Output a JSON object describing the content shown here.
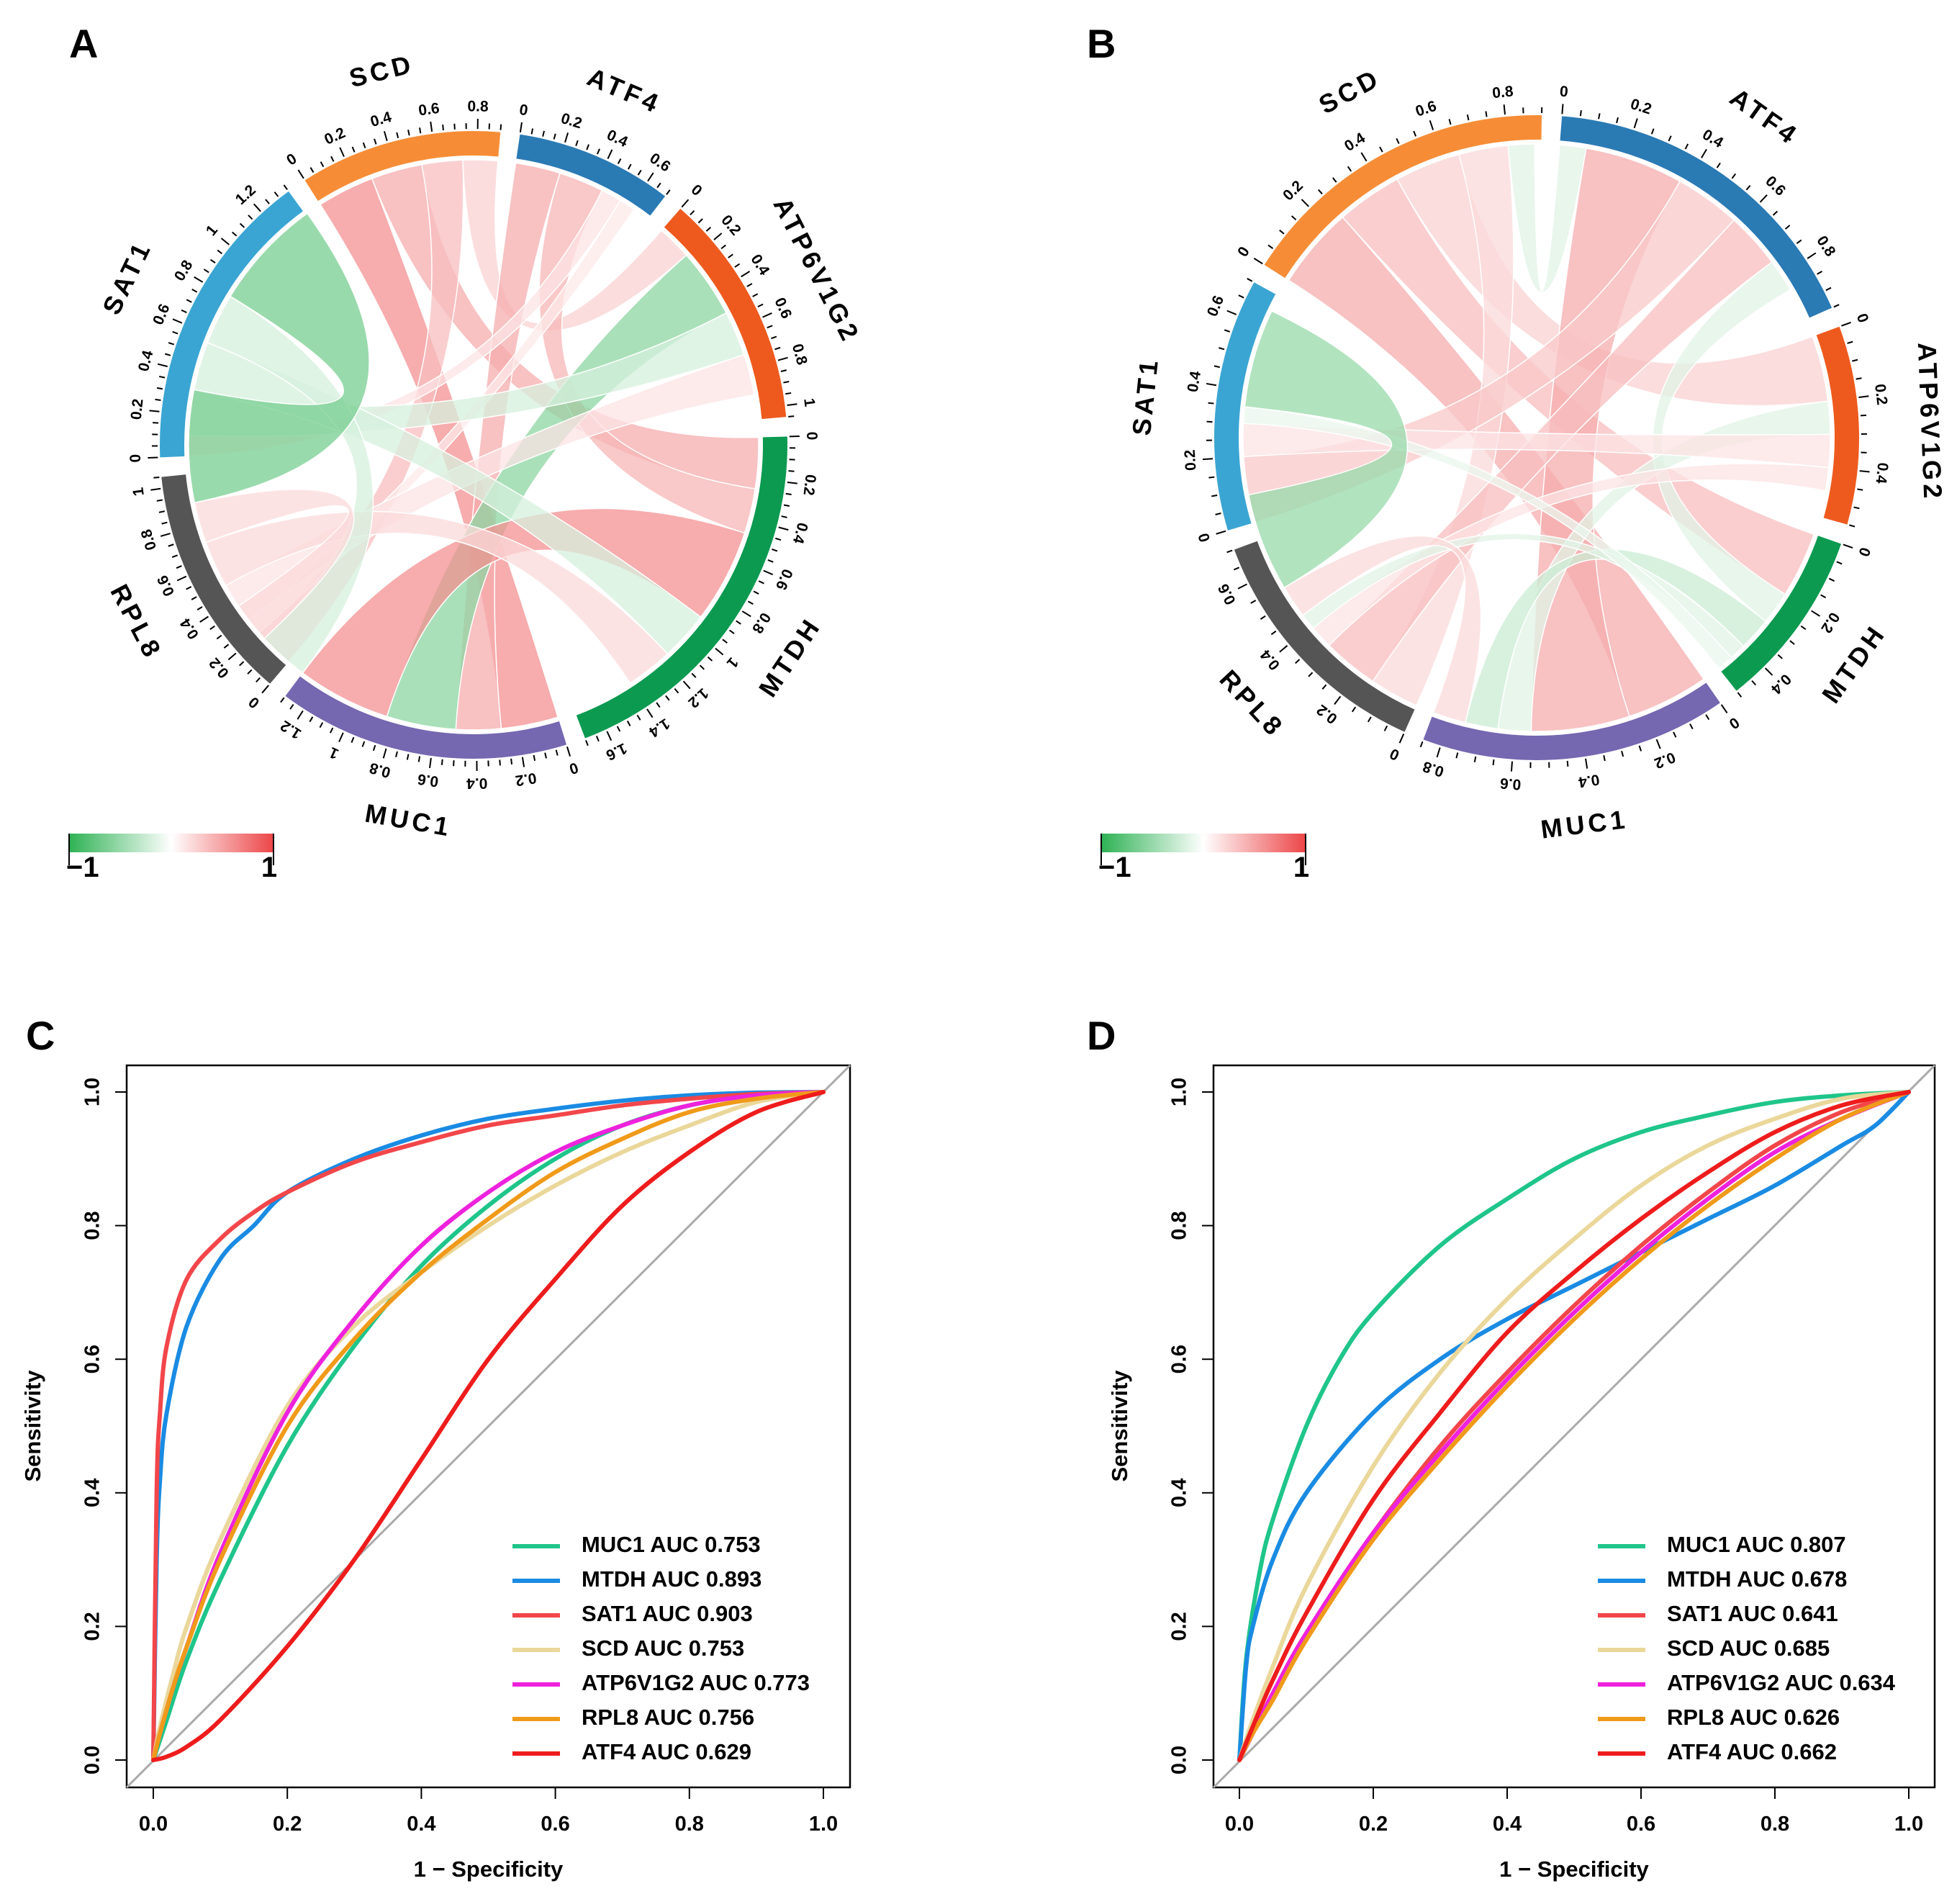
{
  "chart_data": [
    {
      "panel": "A",
      "type": "chord",
      "gap_degrees": 3.6,
      "segments": [
        {
          "name": "ATF4",
          "max": 0.7,
          "color": "#2a7ab4",
          "ticks": [
            "0",
            "0.2",
            "0.4",
            "0.6"
          ]
        },
        {
          "name": "ATP6V1G2",
          "max": 1.05,
          "color": "#ee5a1e",
          "ticks": [
            "0",
            "0.2",
            "0.4",
            "0.6",
            "0.8",
            "1"
          ]
        },
        {
          "name": "MTDH",
          "max": 1.7,
          "color": "#0b9a50",
          "ticks": [
            "0",
            "0.2",
            "0.4",
            "0.6",
            "0.8",
            "1",
            "1.2",
            "1.4",
            "1.6"
          ]
        },
        {
          "name": "MUC1",
          "max": 1.3,
          "color": "#7567b0",
          "ticks": [
            "0",
            "0.2",
            "0.4",
            "0.6",
            "0.8",
            "1",
            "1.2"
          ]
        },
        {
          "name": "RPL8",
          "max": 1.05,
          "color": "#555555",
          "ticks": [
            "0",
            "0.2",
            "0.4",
            "0.6",
            "0.8",
            "1"
          ]
        },
        {
          "name": "SAT1",
          "max": 1.35,
          "color": "#3aa5d3",
          "ticks": [
            "0",
            "0.2",
            "0.4",
            "0.6",
            "0.8",
            "1",
            "1.2"
          ]
        },
        {
          "name": "SCD",
          "max": 0.9,
          "color": "#f68d36",
          "ticks": [
            "0",
            "0.2",
            "0.4",
            "0.6",
            "0.8"
          ]
        }
      ],
      "links": [
        {
          "from": "SCD",
          "to": "MUC1",
          "value": 0.28,
          "corr": 0.6
        },
        {
          "from": "SCD",
          "to": "MTDH",
          "value": 0.25,
          "corr": 0.45
        },
        {
          "from": "SCD",
          "to": "RPL8",
          "value": 0.2,
          "corr": 0.35
        },
        {
          "from": "SCD",
          "to": "ATP6V1G2",
          "value": 0.17,
          "corr": 0.25
        },
        {
          "from": "ATF4",
          "to": "MUC1",
          "value": 0.22,
          "corr": 0.45
        },
        {
          "from": "ATF4",
          "to": "MTDH",
          "value": 0.22,
          "corr": 0.4
        },
        {
          "from": "ATF4",
          "to": "SAT1",
          "value": 0.1,
          "corr": 0.15
        },
        {
          "from": "ATF4",
          "to": "RPL8",
          "value": 0.08,
          "corr": 0.12
        },
        {
          "from": "ATP6V1G2",
          "to": "MUC1",
          "value": 0.34,
          "corr": -0.55
        },
        {
          "from": "ATP6V1G2",
          "to": "SAT1",
          "value": 0.22,
          "corr": -0.2
        },
        {
          "from": "ATP6V1G2",
          "to": "RPL8",
          "value": 0.2,
          "corr": 0.15
        },
        {
          "from": "MTDH",
          "to": "MUC1",
          "value": 0.46,
          "corr": 0.6
        },
        {
          "from": "MTDH",
          "to": "SAT1",
          "value": 0.24,
          "corr": -0.2
        },
        {
          "from": "MTDH",
          "to": "RPL8",
          "value": 0.23,
          "corr": 0.2
        },
        {
          "from": "MUC1",
          "to": "SAT1",
          "value": 0.25,
          "corr": -0.2
        },
        {
          "from": "MUC1",
          "to": "RPL8",
          "value": 0.2,
          "corr": 0.2
        },
        {
          "from": "RPL8",
          "to": "SAT1",
          "value": 0.55,
          "corr": -0.65
        }
      ],
      "colorbar": {
        "min_label": "−1",
        "max_label": "1"
      }
    },
    {
      "panel": "B",
      "type": "chord",
      "gap_degrees": 3.6,
      "segments": [
        {
          "name": "ATF4",
          "max": 0.95,
          "color": "#2a7ab4",
          "ticks": [
            "0",
            "0.2",
            "0.4",
            "0.6",
            "0.8"
          ]
        },
        {
          "name": "ATP6V1G2",
          "max": 0.55,
          "color": "#ee5a1e",
          "ticks": [
            "0",
            "0.2",
            "0.4"
          ]
        },
        {
          "name": "MTDH",
          "max": 0.5,
          "color": "#0b9a50",
          "ticks": [
            "0",
            "0.2",
            "0.4"
          ]
        },
        {
          "name": "MUC1",
          "max": 0.85,
          "color": "#7567b0",
          "ticks": [
            "0",
            "0.2",
            "0.4",
            "0.6",
            "0.8"
          ]
        },
        {
          "name": "RPL8",
          "max": 0.7,
          "color": "#555555",
          "ticks": [
            "0",
            "0.2",
            "0.4",
            "0.6"
          ]
        },
        {
          "name": "SAT1",
          "max": 0.7,
          "color": "#3aa5d3",
          "ticks": [
            "0",
            "0.2",
            "0.4",
            "0.6"
          ]
        },
        {
          "name": "SCD",
          "max": 0.9,
          "color": "#f68d36",
          "ticks": [
            "0",
            "0.2",
            "0.4",
            "0.6",
            "0.8"
          ]
        }
      ],
      "links": [
        {
          "from": "SCD",
          "to": "MUC1",
          "value": 0.25,
          "corr": 0.45
        },
        {
          "from": "SCD",
          "to": "MTDH",
          "value": 0.2,
          "corr": 0.35
        },
        {
          "from": "SCD",
          "to": "ATP6V1G2",
          "value": 0.2,
          "corr": 0.25
        },
        {
          "from": "SCD",
          "to": "RPL8",
          "value": 0.15,
          "corr": 0.2
        },
        {
          "from": "SCD",
          "to": "ATF4",
          "value": 0.08,
          "corr": -0.15
        },
        {
          "from": "ATF4",
          "to": "MUC1",
          "value": 0.3,
          "corr": 0.45
        },
        {
          "from": "ATF4",
          "to": "SAT1",
          "value": 0.2,
          "corr": 0.3
        },
        {
          "from": "ATF4",
          "to": "RPL8",
          "value": 0.17,
          "corr": 0.35
        },
        {
          "from": "ATF4",
          "to": "MTDH",
          "value": 0.1,
          "corr": -0.15
        },
        {
          "from": "ATP6V1G2",
          "to": "MUC1",
          "value": 0.1,
          "corr": -0.15
        },
        {
          "from": "ATP6V1G2",
          "to": "SAT1",
          "value": 0.1,
          "corr": 0.15
        },
        {
          "from": "ATP6V1G2",
          "to": "RPL8",
          "value": 0.07,
          "corr": 0.15
        },
        {
          "from": "MTDH",
          "to": "MUC1",
          "value": 0.1,
          "corr": -0.25
        },
        {
          "from": "MTDH",
          "to": "RPL8",
          "value": 0.05,
          "corr": -0.15
        },
        {
          "from": "MTDH",
          "to": "SAT1",
          "value": 0.05,
          "corr": -0.1
        },
        {
          "from": "MUC1",
          "to": "RPL8",
          "value": 0.1,
          "corr": 0.2
        },
        {
          "from": "RPL8",
          "to": "SAT1",
          "value": 0.3,
          "corr": -0.5
        }
      ],
      "colorbar": {
        "min_label": "−1",
        "max_label": "1"
      }
    },
    {
      "panel": "C",
      "type": "line",
      "xlabel": "1 − Specificity",
      "ylabel": "Sensitivity",
      "xlim": [
        0,
        1
      ],
      "ylim": [
        0,
        1
      ],
      "xticks": [
        "0.0",
        "0.2",
        "0.4",
        "0.6",
        "0.8",
        "1.0"
      ],
      "yticks": [
        "0.0",
        "0.2",
        "0.4",
        "0.6",
        "0.8",
        "1.0"
      ],
      "legend_position": "bottom-right",
      "series": [
        {
          "name": "MUC1 AUC 0.753",
          "color": "#1fc58a",
          "x": [
            0,
            0.02,
            0.05,
            0.1,
            0.2,
            0.3,
            0.4,
            0.5,
            0.6,
            0.7,
            0.8,
            0.9,
            1.0
          ],
          "y": [
            0,
            0.06,
            0.15,
            0.27,
            0.47,
            0.62,
            0.74,
            0.83,
            0.9,
            0.95,
            0.98,
            0.995,
            1.0
          ]
        },
        {
          "name": "MTDH AUC 0.893",
          "color": "#1a8be3",
          "x": [
            0,
            0.005,
            0.01,
            0.02,
            0.05,
            0.1,
            0.15,
            0.2,
            0.3,
            0.4,
            0.5,
            0.6,
            0.7,
            0.8,
            0.9,
            1.0
          ],
          "y": [
            0,
            0.3,
            0.42,
            0.52,
            0.65,
            0.75,
            0.8,
            0.85,
            0.9,
            0.935,
            0.96,
            0.975,
            0.987,
            0.995,
            0.999,
            1.0
          ]
        },
        {
          "name": "SAT1 AUC 0.903",
          "color": "#f2464a",
          "x": [
            0,
            0.005,
            0.01,
            0.02,
            0.05,
            0.1,
            0.15,
            0.2,
            0.3,
            0.4,
            0.5,
            0.6,
            0.7,
            0.8,
            0.9,
            1.0
          ],
          "y": [
            0,
            0.4,
            0.52,
            0.62,
            0.72,
            0.78,
            0.82,
            0.85,
            0.895,
            0.925,
            0.95,
            0.965,
            0.98,
            0.99,
            0.997,
            1.0
          ]
        },
        {
          "name": "SCD AUC 0.753",
          "color": "#ead79a",
          "x": [
            0,
            0.01,
            0.03,
            0.05,
            0.1,
            0.2,
            0.3,
            0.4,
            0.5,
            0.6,
            0.7,
            0.8,
            0.9,
            1.0
          ],
          "y": [
            0,
            0.05,
            0.13,
            0.2,
            0.33,
            0.53,
            0.65,
            0.73,
            0.8,
            0.86,
            0.91,
            0.95,
            0.985,
            1.0
          ]
        },
        {
          "name": "ATP6V1G2 AUC 0.773",
          "color": "#ee22dd",
          "x": [
            0,
            0.01,
            0.03,
            0.05,
            0.1,
            0.2,
            0.3,
            0.4,
            0.5,
            0.6,
            0.7,
            0.8,
            0.9,
            1.0
          ],
          "y": [
            0,
            0.04,
            0.11,
            0.17,
            0.31,
            0.52,
            0.66,
            0.77,
            0.85,
            0.91,
            0.95,
            0.98,
            0.995,
            1.0
          ]
        },
        {
          "name": "RPL8 AUC 0.756",
          "color": "#f09a1a",
          "x": [
            0,
            0.01,
            0.03,
            0.05,
            0.1,
            0.2,
            0.3,
            0.4,
            0.5,
            0.6,
            0.7,
            0.8,
            0.9,
            1.0
          ],
          "y": [
            0,
            0.04,
            0.11,
            0.17,
            0.3,
            0.5,
            0.63,
            0.73,
            0.81,
            0.88,
            0.93,
            0.97,
            0.99,
            1.0
          ]
        },
        {
          "name": "ATF4 AUC 0.629",
          "color": "#ee1c1c",
          "x": [
            0,
            0.02,
            0.05,
            0.1,
            0.2,
            0.3,
            0.4,
            0.5,
            0.6,
            0.7,
            0.8,
            0.9,
            1.0
          ],
          "y": [
            0,
            0.005,
            0.02,
            0.06,
            0.17,
            0.3,
            0.45,
            0.6,
            0.72,
            0.83,
            0.91,
            0.97,
            1.0
          ]
        }
      ]
    },
    {
      "panel": "D",
      "type": "line",
      "xlabel": "1 − Specificity",
      "ylabel": "Sensitivity",
      "xlim": [
        0,
        1
      ],
      "ylim": [
        0,
        1
      ],
      "xticks": [
        "0.0",
        "0.2",
        "0.4",
        "0.6",
        "0.8",
        "1.0"
      ],
      "yticks": [
        "0.0",
        "0.2",
        "0.4",
        "0.6",
        "0.8",
        "1.0"
      ],
      "legend_position": "bottom-right",
      "series": [
        {
          "name": "MUC1 AUC 0.807",
          "color": "#1fc58a",
          "x": [
            0,
            0.01,
            0.03,
            0.05,
            0.1,
            0.15,
            0.2,
            0.3,
            0.4,
            0.5,
            0.6,
            0.7,
            0.8,
            0.9,
            1.0
          ],
          "y": [
            0,
            0.15,
            0.28,
            0.36,
            0.5,
            0.6,
            0.67,
            0.77,
            0.84,
            0.9,
            0.94,
            0.965,
            0.985,
            0.995,
            1.0
          ]
        },
        {
          "name": "MTDH AUC 0.678",
          "color": "#1a8be3",
          "x": [
            0,
            0.01,
            0.02,
            0.05,
            0.1,
            0.2,
            0.3,
            0.4,
            0.5,
            0.6,
            0.7,
            0.8,
            0.9,
            0.95,
            1.0
          ],
          "y": [
            0,
            0.14,
            0.2,
            0.3,
            0.4,
            0.52,
            0.6,
            0.66,
            0.71,
            0.76,
            0.81,
            0.86,
            0.92,
            0.95,
            1.0
          ]
        },
        {
          "name": "SAT1 AUC 0.641",
          "color": "#f2464a",
          "x": [
            0,
            0.02,
            0.05,
            0.1,
            0.2,
            0.3,
            0.4,
            0.5,
            0.6,
            0.7,
            0.8,
            0.9,
            1.0
          ],
          "y": [
            0,
            0.04,
            0.1,
            0.19,
            0.34,
            0.47,
            0.58,
            0.68,
            0.77,
            0.85,
            0.92,
            0.97,
            1.0
          ]
        },
        {
          "name": "SCD AUC 0.685",
          "color": "#ead79a",
          "x": [
            0,
            0.02,
            0.05,
            0.1,
            0.2,
            0.3,
            0.4,
            0.5,
            0.6,
            0.7,
            0.8,
            0.9,
            1.0
          ],
          "y": [
            0,
            0.06,
            0.14,
            0.26,
            0.44,
            0.58,
            0.69,
            0.78,
            0.86,
            0.92,
            0.96,
            0.99,
            1.0
          ]
        },
        {
          "name": "ATP6V1G2 AUC 0.634",
          "color": "#ee22dd",
          "x": [
            0,
            0.02,
            0.05,
            0.1,
            0.2,
            0.3,
            0.4,
            0.5,
            0.6,
            0.7,
            0.8,
            0.9,
            1.0
          ],
          "y": [
            0,
            0.04,
            0.1,
            0.19,
            0.34,
            0.46,
            0.57,
            0.67,
            0.76,
            0.84,
            0.91,
            0.96,
            1.0
          ]
        },
        {
          "name": "RPL8 AUC 0.626",
          "color": "#f09a1a",
          "x": [
            0,
            0.02,
            0.05,
            0.1,
            0.2,
            0.3,
            0.4,
            0.5,
            0.6,
            0.7,
            0.8,
            0.9,
            1.0
          ],
          "y": [
            0,
            0.04,
            0.09,
            0.18,
            0.33,
            0.45,
            0.56,
            0.66,
            0.75,
            0.83,
            0.9,
            0.96,
            1.0
          ]
        },
        {
          "name": "ATF4 AUC 0.662",
          "color": "#ee1c1c",
          "x": [
            0,
            0.02,
            0.05,
            0.1,
            0.2,
            0.3,
            0.4,
            0.5,
            0.6,
            0.7,
            0.8,
            0.9,
            1.0
          ],
          "y": [
            0,
            0.05,
            0.12,
            0.22,
            0.39,
            0.52,
            0.64,
            0.73,
            0.81,
            0.88,
            0.94,
            0.98,
            1.0
          ]
        }
      ]
    }
  ],
  "panels": {
    "A": "A",
    "B": "B",
    "C": "C",
    "D": "D"
  }
}
